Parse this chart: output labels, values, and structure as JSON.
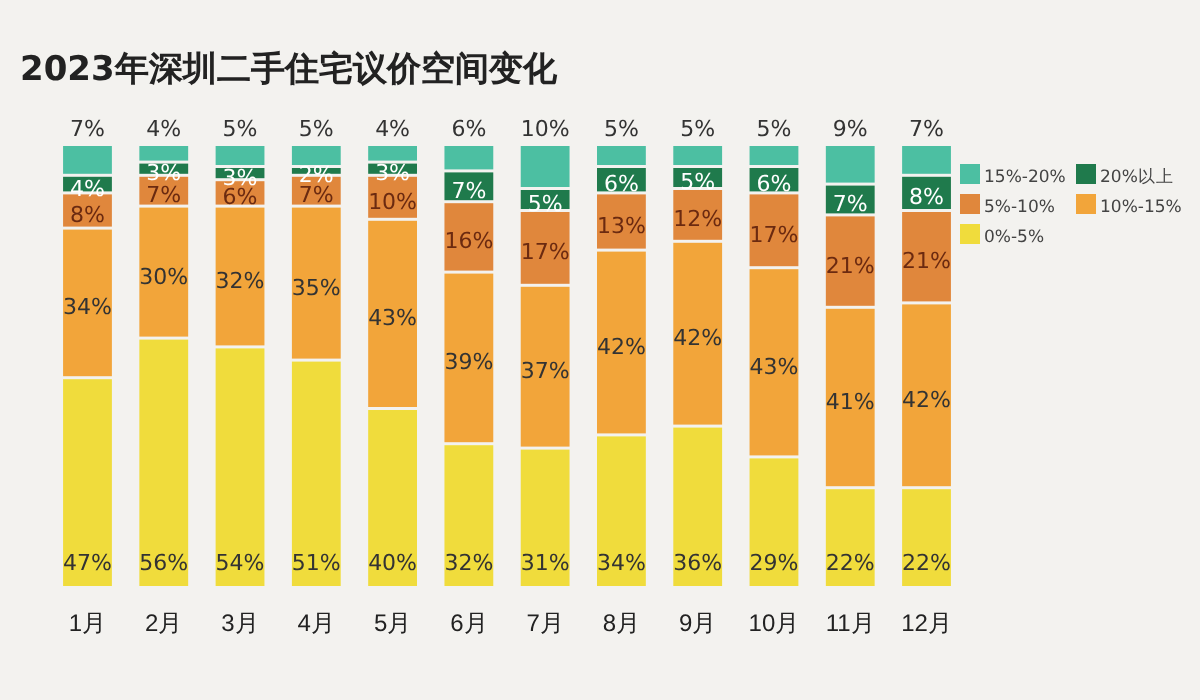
{
  "chart_data": {
    "type": "bar",
    "title": "2023年深圳二手住宅议价空间变化",
    "stacked": true,
    "legend": "right",
    "tick_labels": "x",
    "categories": [
      "1月",
      "2月",
      "3月",
      "4月",
      "5月",
      "6月",
      "7月",
      "8月",
      "9月",
      "10月",
      "11月",
      "12月"
    ],
    "series": [
      {
        "name": "0%-5%",
        "color": "#f0dc3c",
        "values": [
          47,
          56,
          54,
          51,
          40,
          32,
          31,
          34,
          36,
          29,
          22,
          22
        ],
        "value_labels": [
          "47%",
          "56%",
          "54%",
          "51%",
          "40%",
          "32%",
          "31%",
          "34%",
          "36%",
          "29%",
          "22%",
          "22%"
        ]
      },
      {
        "name": "10%-15%",
        "color": "#f2a53a",
        "values": [
          34,
          30,
          32,
          35,
          43,
          39,
          37,
          42,
          42,
          43,
          41,
          42
        ],
        "value_labels": [
          "34%",
          "30%",
          "32%",
          "35%",
          "43%",
          "39%",
          "37%",
          "42%",
          "42%",
          "43%",
          "41%",
          "42%"
        ]
      },
      {
        "name": "5%-10%",
        "color": "#e0873c",
        "values": [
          8,
          7,
          6,
          7,
          10,
          16,
          17,
          13,
          12,
          17,
          21,
          21
        ],
        "value_labels": [
          "8%",
          "7%",
          "6%",
          "7%",
          "10%",
          "16%",
          "17%",
          "13%",
          "12%",
          "17%",
          "21%",
          "21%"
        ]
      },
      {
        "name": "20%以上",
        "color": "#1f7a4c",
        "values": [
          4,
          3,
          3,
          2,
          3,
          7,
          5,
          6,
          5,
          6,
          7,
          8
        ],
        "value_labels": [
          "4%",
          "3%",
          "3%",
          "2%",
          "3%",
          "7%",
          "5%",
          "6%",
          "5%",
          "6%",
          "7%",
          "8%"
        ]
      },
      {
        "name": "15%-20%",
        "color": "#4cbfa2",
        "values": [
          7,
          4,
          5,
          5,
          4,
          6,
          10,
          5,
          5,
          5,
          9,
          7
        ],
        "value_labels": [
          "7%",
          "4%",
          "5%",
          "5%",
          "4%",
          "6%",
          "10%",
          "5%",
          "5%",
          "5%",
          "9%",
          "7%"
        ]
      }
    ]
  }
}
